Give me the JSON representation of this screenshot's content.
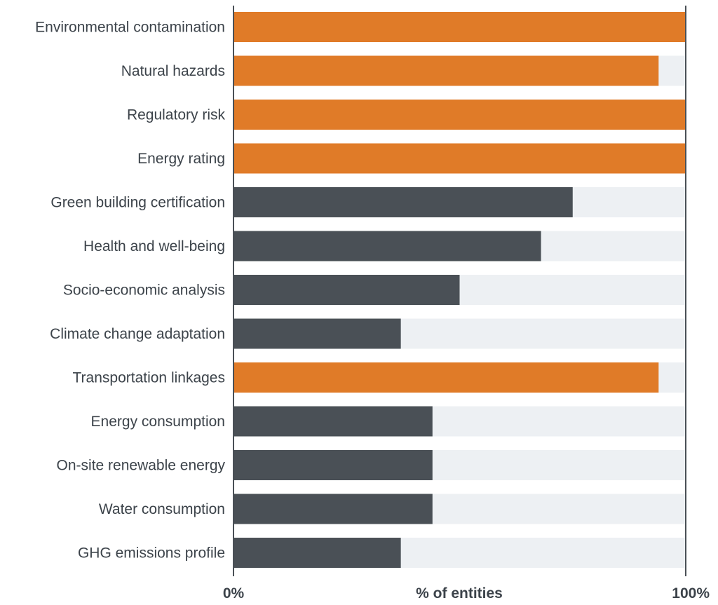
{
  "chart_data": {
    "type": "bar",
    "orientation": "horizontal",
    "categories": [
      "Environmental contamination",
      "Natural hazards",
      "Regulatory risk",
      "Energy rating",
      "Green building certification",
      "Health and well-being",
      "Socio-economic analysis",
      "Climate change adaptation",
      "Transportation linkages",
      "Energy consumption",
      "On-site renewable energy",
      "Water consumption",
      "GHG emissions profile"
    ],
    "values": [
      100,
      94,
      100,
      100,
      75,
      68,
      50,
      37,
      94,
      44,
      44,
      44,
      37
    ],
    "highlighted": [
      true,
      true,
      true,
      true,
      false,
      false,
      false,
      false,
      true,
      false,
      false,
      false,
      false
    ],
    "xlim": [
      0,
      100
    ],
    "xlabel": "% of entities",
    "x_ticks": [
      "0%",
      "100%"
    ],
    "colors": {
      "highlight": "#e07b28",
      "default": "#4a5056",
      "track": "#edf0f3",
      "axis": "#4a5056",
      "text": "#3c434a"
    },
    "grid": false,
    "legend": "none"
  }
}
